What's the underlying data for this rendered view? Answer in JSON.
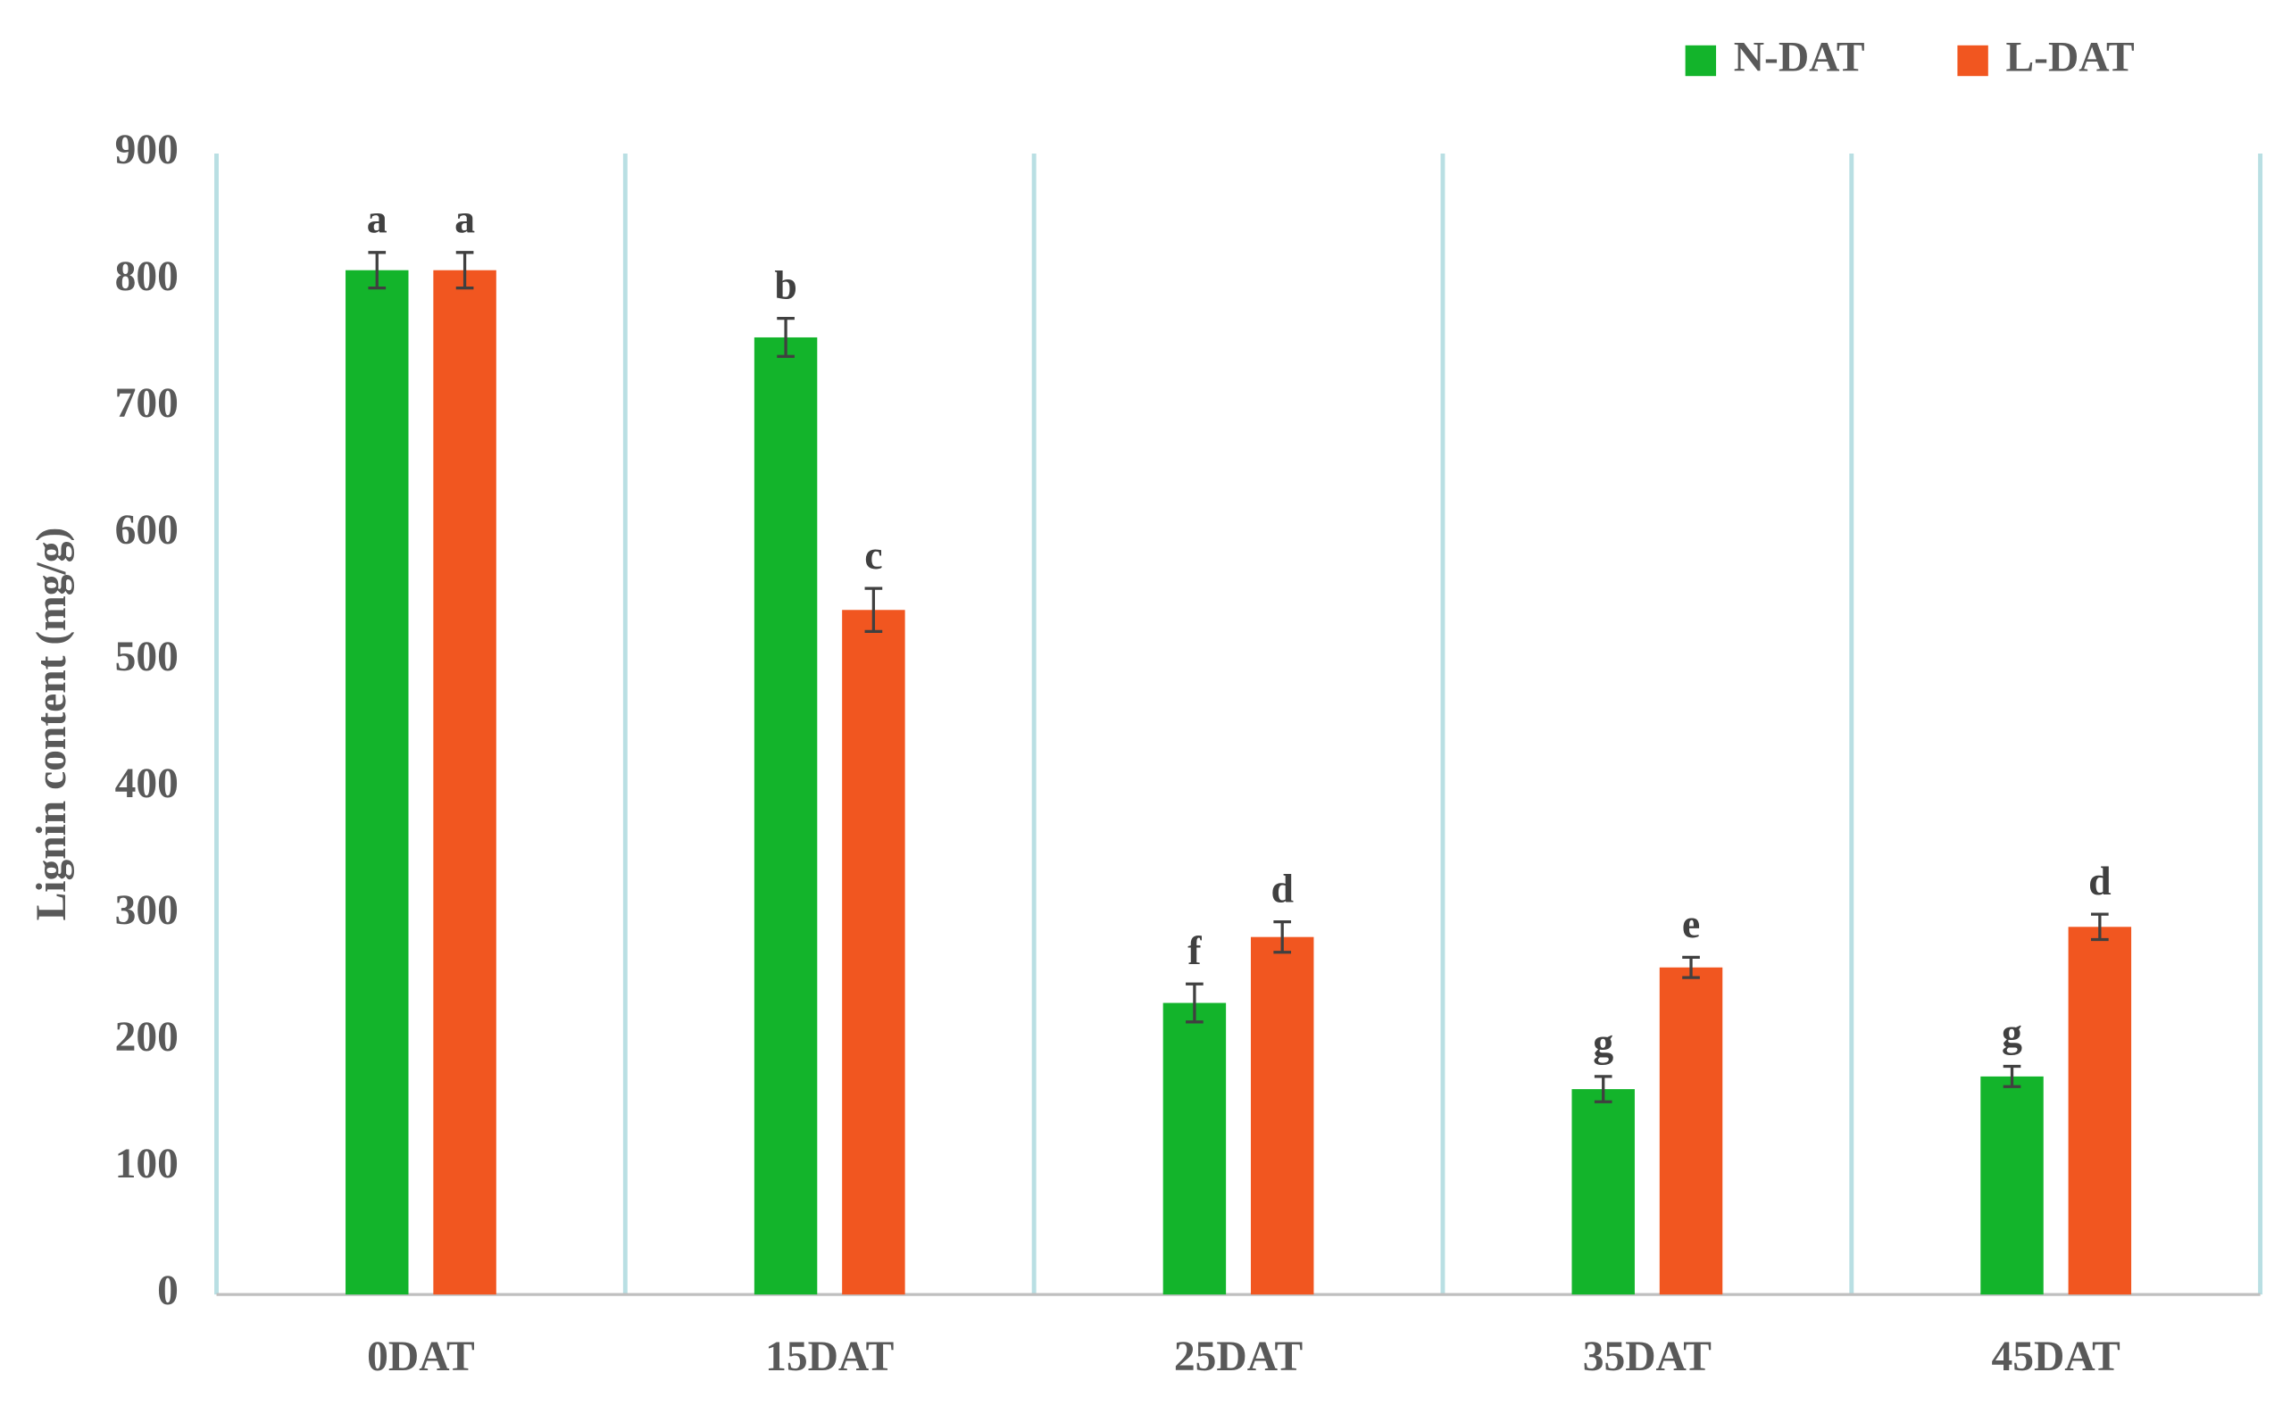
{
  "chart_data": {
    "type": "bar",
    "y_label": "Lignin content (mg/g)",
    "categories": [
      "0DAT",
      "15DAT",
      "25DAT",
      "35DAT",
      "45DAT"
    ],
    "series": [
      {
        "name": "N-DAT",
        "color": "#13b42b",
        "values": [
          808,
          755,
          230,
          162,
          172
        ],
        "errors": [
          14,
          15,
          15,
          10,
          8
        ],
        "letters": [
          "a",
          "b",
          "f",
          "g",
          "g"
        ]
      },
      {
        "name": "L-DAT",
        "color": "#f15620",
        "values": [
          808,
          540,
          282,
          258,
          290
        ],
        "errors": [
          14,
          17,
          12,
          8,
          10
        ],
        "letters": [
          "a",
          "c",
          "d",
          "e",
          "d"
        ]
      }
    ],
    "ylim": [
      0,
      900
    ],
    "yticks": [
      0,
      100,
      200,
      300,
      400,
      500,
      600,
      700,
      800,
      900
    ],
    "legend": "top-right"
  }
}
